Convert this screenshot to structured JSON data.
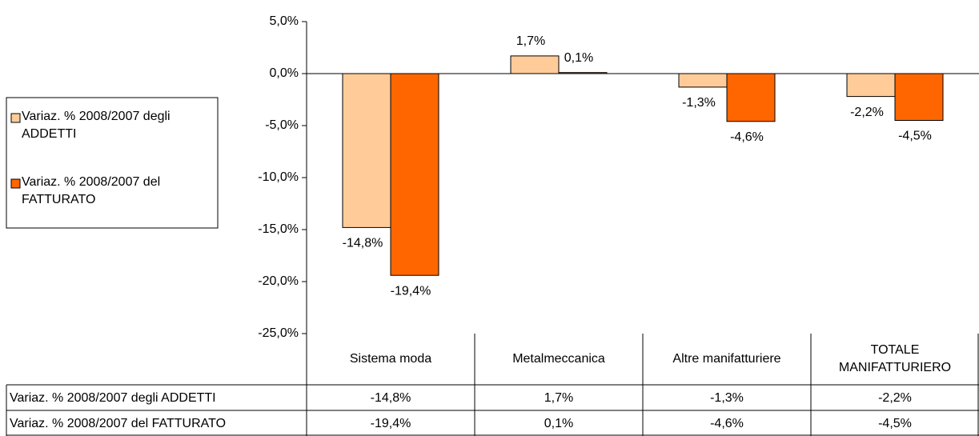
{
  "chart_data": {
    "type": "bar",
    "categories": [
      "Sistema moda",
      "Metalmeccanica",
      "Altre manifatturiere",
      "TOTALE MANIFATTURIERO"
    ],
    "series": [
      {
        "name": "Variaz. % 2008/2007 degli ADDETTI",
        "color": "#ffcc99",
        "values": [
          -14.8,
          1.7,
          -1.3,
          -2.2
        ],
        "value_labels": [
          "-14,8%",
          "1,7%",
          "-1,3%",
          "-2,2%"
        ]
      },
      {
        "name": "Variaz. % 2008/2007 del FATTURATO",
        "color": "#ff6600",
        "values": [
          -19.4,
          0.1,
          -4.6,
          -4.5
        ],
        "value_labels": [
          "-19,4%",
          "0,1%",
          "-4,6%",
          "-4,5%"
        ]
      }
    ],
    "ylim": [
      -25,
      5
    ],
    "yticks": [
      {
        "value": 5,
        "label": "5,0%"
      },
      {
        "value": 0,
        "label": "0,0%"
      },
      {
        "value": -5,
        "label": "-5,0%"
      },
      {
        "value": -10,
        "label": "-10,0%"
      },
      {
        "value": -15,
        "label": "-15,0%"
      },
      {
        "value": -20,
        "label": "-20,0%"
      },
      {
        "value": -25,
        "label": "-25,0%"
      }
    ],
    "grid": false,
    "legend": "left",
    "data_table": true
  }
}
